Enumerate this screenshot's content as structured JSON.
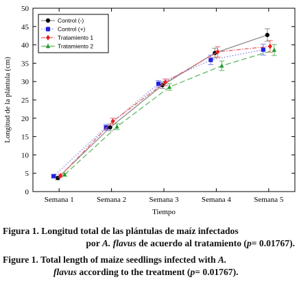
{
  "chart_data": {
    "type": "line",
    "title": "",
    "xlabel": "Tiempo",
    "ylabel": "Longitud de la plántula (cm)",
    "categories": [
      "Semana 1",
      "Semana 2",
      "Semana 3",
      "Semana 4",
      "Semana 5"
    ],
    "ylim": [
      0,
      50
    ],
    "yticks": [
      0,
      5,
      10,
      15,
      20,
      25,
      30,
      35,
      40,
      45,
      50
    ],
    "grid": false,
    "legend_position": "top-left",
    "error_bars": true,
    "series": [
      {
        "name": "Control (-)",
        "color": "#000000",
        "line_color": "#8c8c8c",
        "marker": "circle",
        "dash": "solid",
        "values": [
          3.7,
          17.5,
          29.0,
          37.8,
          42.7
        ],
        "errors": [
          0.5,
          0.9,
          0.9,
          1.3,
          1.7
        ]
      },
      {
        "name": "Control (+)",
        "color": "#1f1fe0",
        "line_color": "#8080e8",
        "marker": "square",
        "dash": "dot",
        "values": [
          4.2,
          17.5,
          29.4,
          35.9,
          38.7
        ],
        "errors": [
          0.4,
          0.8,
          0.9,
          1.3,
          1.5
        ]
      },
      {
        "name": "Tratamiento 1",
        "color": "#e81e1e",
        "line_color": "#e86060",
        "marker": "diamond",
        "dash": "dashdot",
        "values": [
          4.3,
          19.2,
          29.8,
          38.1,
          39.6
        ],
        "errors": [
          0.4,
          0.8,
          0.9,
          1.4,
          1.6
        ]
      },
      {
        "name": "Tratamiento 2",
        "color": "#1f9a2a",
        "line_color": "#5fb864",
        "marker": "triangle",
        "dash": "dash",
        "values": [
          4.6,
          17.7,
          28.5,
          34.3,
          38.6
        ],
        "errors": [
          0.4,
          0.8,
          0.9,
          1.3,
          1.5
        ]
      }
    ]
  },
  "caption": {
    "es_line1": "Figura 1. Longitud total de las plántulas de maíz infectados",
    "es_line2_pre": "por ",
    "es_line2_italic": "A. flavus",
    "es_line2_post": " de acuerdo al tratamiento (",
    "es_line2_p": "p",
    "es_line2_end": "= 0.01767).",
    "en_line1": "Figure 1. Total length of maize seedlings infected with ",
    "en_line1_italic": "A.",
    "en_line2_italic": "flavus",
    "en_line2_post": " according to the treatment (",
    "en_line2_p": "p",
    "en_line2_end": "= 0.01767)."
  }
}
